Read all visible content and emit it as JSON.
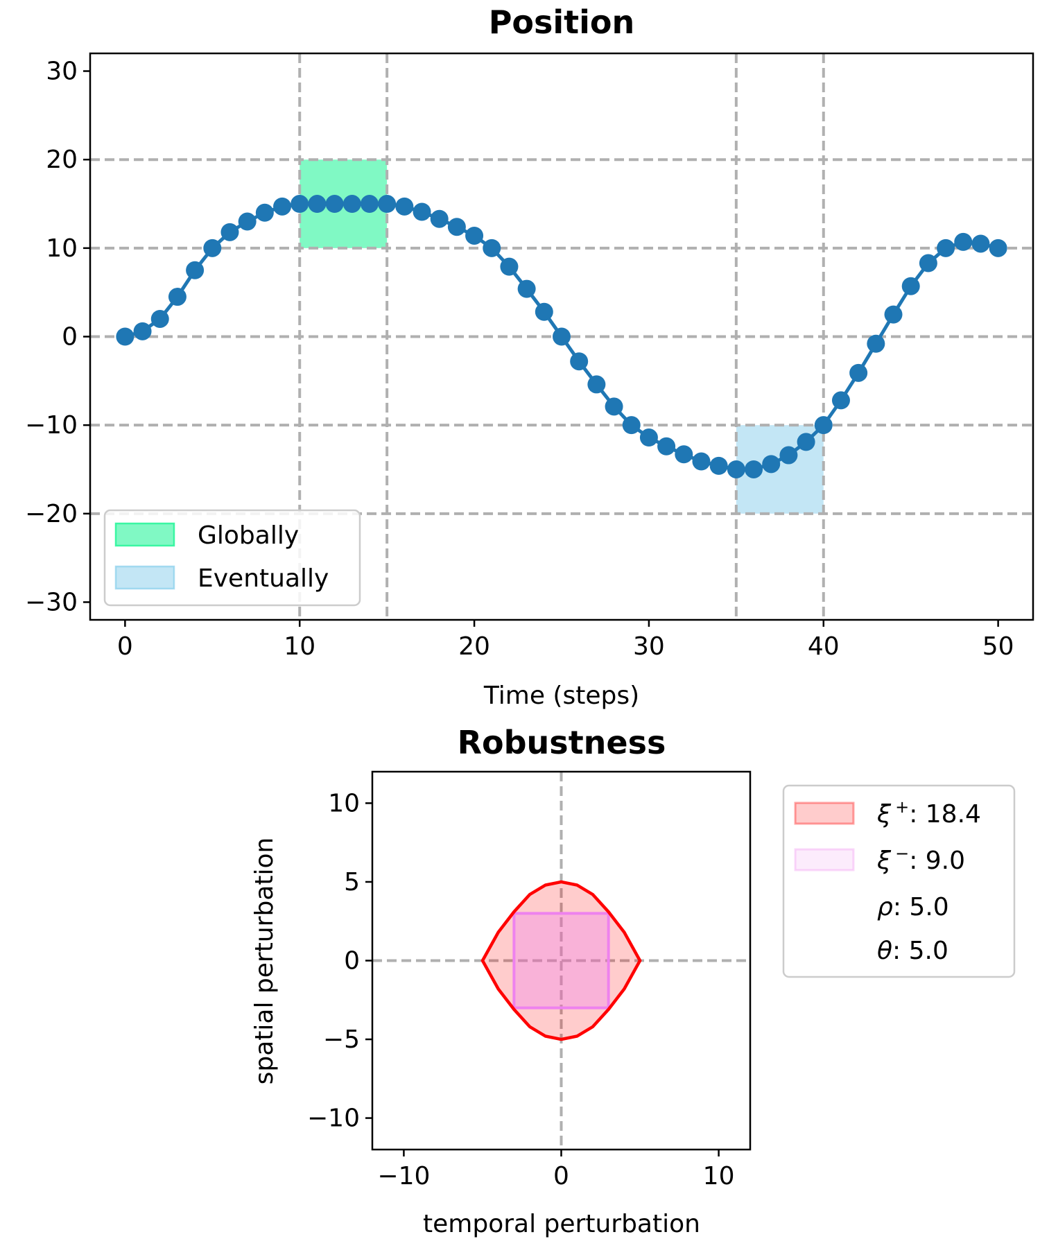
{
  "chart_data": [
    {
      "type": "line",
      "title": "Position",
      "xlabel": "Time (steps)",
      "ylabel": "",
      "xlim": [
        -2,
        52
      ],
      "ylim": [
        -32,
        32
      ],
      "xticks": [
        0,
        10,
        20,
        30,
        40,
        50
      ],
      "yticks": [
        -30,
        -20,
        -10,
        0,
        10,
        20,
        30
      ],
      "xtick_labels": [
        "0",
        "10",
        "20",
        "30",
        "40",
        "50"
      ],
      "ytick_labels": [
        "−30",
        "−20",
        "−10",
        "0",
        "10",
        "20",
        "30"
      ],
      "grid": true,
      "grid_x": [
        10,
        15,
        35,
        40
      ],
      "grid_y": [
        -20,
        -10,
        0,
        10,
        20
      ],
      "line_color": "#1f77b4",
      "series": [
        {
          "x": [
            0,
            1,
            2,
            3,
            4,
            5,
            6,
            7,
            8,
            9,
            10,
            11,
            12,
            13,
            14,
            15,
            16,
            17,
            18,
            19,
            20,
            21,
            22,
            23,
            24,
            25,
            26,
            27,
            28,
            29,
            30,
            31,
            32,
            33,
            34,
            35,
            36,
            37,
            38,
            39,
            40,
            41,
            42,
            43,
            44,
            45,
            46,
            47,
            48,
            49,
            50
          ],
          "values": [
            0,
            0.6,
            2.0,
            4.5,
            7.5,
            10.0,
            11.8,
            13.0,
            14.0,
            14.7,
            15.0,
            15.0,
            15.0,
            15.0,
            15.0,
            15.0,
            14.7,
            14.1,
            13.3,
            12.4,
            11.4,
            10.0,
            7.9,
            5.4,
            2.8,
            0,
            -2.8,
            -5.4,
            -7.9,
            -10.0,
            -11.4,
            -12.4,
            -13.3,
            -14.1,
            -14.6,
            -15.0,
            -15.0,
            -14.4,
            -13.4,
            -11.9,
            -10.0,
            -7.2,
            -4.1,
            -0.8,
            2.5,
            5.7,
            8.3,
            10.0,
            10.7,
            10.5,
            10.0
          ]
        }
      ],
      "regions": [
        {
          "name": "Globally",
          "x": [
            10,
            15
          ],
          "y": [
            10,
            20
          ],
          "color": "#2cf59c"
        },
        {
          "name": "Eventually",
          "x": [
            35,
            40
          ],
          "y": [
            -20,
            -10
          ],
          "color": "#87ceeb"
        }
      ],
      "legend_position": "lower-left"
    },
    {
      "type": "area",
      "title": "Robustness",
      "xlabel": "temporal perturbation",
      "ylabel": "spatial perturbation",
      "xlim": [
        -12,
        12
      ],
      "ylim": [
        -12,
        12
      ],
      "xticks": [
        -10,
        0,
        10
      ],
      "yticks": [
        -10,
        -5,
        0,
        5,
        10
      ],
      "xtick_labels": [
        "−10",
        "0",
        "10"
      ],
      "ytick_labels": [
        "−10",
        "−5",
        "0",
        "5",
        "10"
      ],
      "grid_x": [
        0
      ],
      "grid_y": [
        0
      ],
      "series": [
        {
          "name": "ξ⁺",
          "color": "#ff0000",
          "x": [
            0,
            1,
            2,
            3,
            4,
            5,
            4,
            3,
            2,
            1,
            0,
            -1,
            -2,
            -3,
            -4,
            -5,
            -4,
            -3,
            -2,
            -1
          ],
          "values": [
            5.0,
            4.8,
            4.2,
            3.1,
            1.8,
            0,
            -1.8,
            -3.1,
            -4.2,
            -4.8,
            -5.0,
            -4.8,
            -4.2,
            -3.1,
            -1.8,
            0,
            1.8,
            3.1,
            4.2,
            4.8
          ]
        },
        {
          "name": "ξ⁻",
          "color": "#ee82ee",
          "x": [
            -3,
            3,
            3,
            -3
          ],
          "values": [
            3,
            3,
            -3,
            -3
          ]
        }
      ],
      "legend": [
        {
          "symbol": "ξ",
          "sup": "+",
          "value": ": 18.4",
          "color": "#ff0000"
        },
        {
          "symbol": "ξ",
          "sup": "−",
          "value": ": 9.0",
          "color": "#ee82ee"
        },
        {
          "symbol": "ρ",
          "sup": "",
          "value": ": 5.0",
          "color": ""
        },
        {
          "symbol": "θ",
          "sup": "",
          "value": ": 5.0",
          "color": ""
        }
      ],
      "legend_position": "outside-right"
    }
  ]
}
